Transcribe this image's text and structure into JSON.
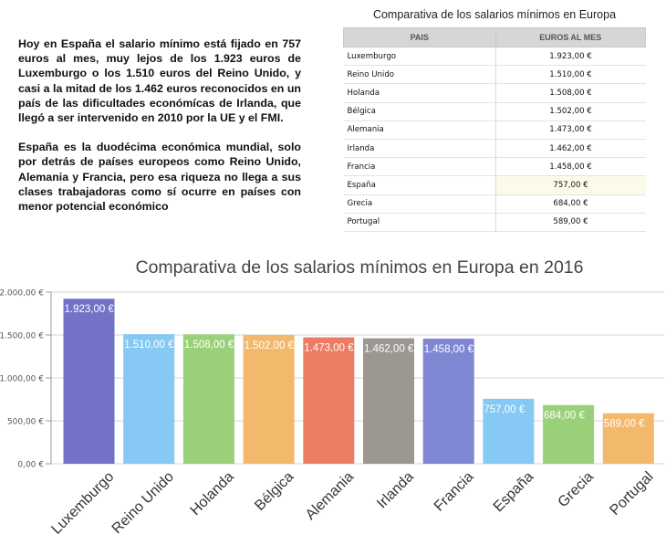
{
  "intro": {
    "paragraph1": "Hoy en España el salario mínimo está fijado en 757 euros al mes, muy lejos de los 1.923 euros de Luxemburgo o los 1.510 euros del Reino Unido, y casi a la mitad de los 1.462 euros reconocidos en un país de las dificultades económícas de Irlanda, que llegó a ser intervenido en 2010 por la UE y el FMI.",
    "paragraph2": "España es la duodécima económica mundial, solo por detrás de países europeos como Reino Unido, Alemania y Francia, pero esa riqueza no llega a sus clases trabajadoras como sí ocurre en países con menor potencial económico"
  },
  "table": {
    "title": "Comparativa de los salarios mínimos en Europa",
    "headers": [
      "PAIS",
      "EUROS AL MES"
    ],
    "rows": [
      [
        "Luxemburgo",
        "1.923,00 €"
      ],
      [
        "Reino Unido",
        "1.510,00 €"
      ],
      [
        "Holanda",
        "1.508,00 €"
      ],
      [
        "Bélgica",
        "1.502,00 €"
      ],
      [
        "Alemania",
        "1.473,00 €"
      ],
      [
        "Irlanda",
        "1.462,00 €"
      ],
      [
        "Francia",
        "1.458,00 €"
      ],
      [
        "España",
        "757,00 €"
      ],
      [
        "Grecia",
        "684,00 €"
      ],
      [
        "Portugal",
        "589,00 €"
      ]
    ],
    "highlight_row": 7
  },
  "chart_data": {
    "type": "bar",
    "title": "Comparativa de los salarios mínimos en Europa en 2016",
    "categories": [
      "Luxemburgo",
      "Reino Unido",
      "Holanda",
      "Bélgica",
      "Alemania",
      "Irlanda",
      "Francia",
      "España",
      "Grecia",
      "Portugal"
    ],
    "values": [
      1923,
      1510,
      1508,
      1502,
      1473,
      1462,
      1458,
      757,
      684,
      589
    ],
    "value_labels": [
      "1.923,00 €",
      "1.510,00 €",
      "1.508,00 €",
      "1.502,00 €",
      "1.473,00 €",
      "1.462,00 €",
      "1.458,00 €",
      "757,00 €",
      "684,00 €",
      "589,00 €"
    ],
    "colors": [
      "#7272c7",
      "#86c9f4",
      "#9bd07a",
      "#f2b96c",
      "#ec7d64",
      "#9b9891",
      "#7f86d3",
      "#86c9f4",
      "#9bd07a",
      "#f2b96c"
    ],
    "yticks": [
      0,
      500,
      1000,
      1500,
      2000
    ],
    "ytick_labels": [
      "0,00 €",
      "500,00 €",
      "1.000,00 €",
      "1.500,00 €",
      "2.000,00 €"
    ],
    "ylim": [
      0,
      2000
    ],
    "grid": true,
    "legend": false,
    "xlabel": "",
    "ylabel": ""
  }
}
